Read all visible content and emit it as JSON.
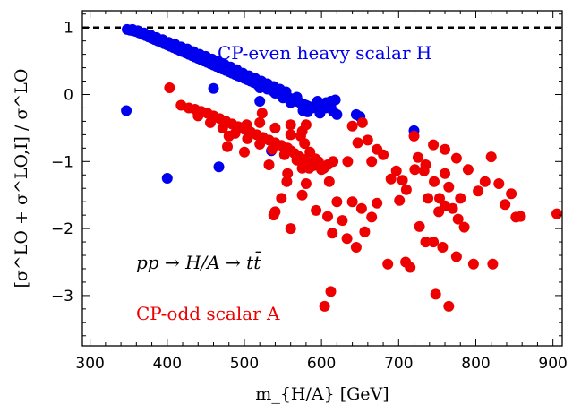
{
  "chart_data": {
    "type": "scatter",
    "xlabel": "m_{H/A} [GeV]",
    "ylabel": "[σ^LO + σ^LO,I] / σ^LO",
    "xlim": [
      290,
      912
    ],
    "ylim": [
      -3.75,
      1.25
    ],
    "xticks": [
      300,
      400,
      500,
      600,
      700,
      800,
      900
    ],
    "yticks": [
      -3,
      -2,
      -1,
      0,
      1
    ],
    "reference_line": {
      "y": 1,
      "style": "dashed",
      "color": "#000000"
    },
    "annotations": {
      "blue_label": "CP-even heavy scalar H",
      "red_label": "CP-odd scalar A",
      "process": "pp → H/A → tt̄"
    },
    "series": [
      {
        "name": "CP-even heavy scalar H",
        "color": "#0000ee",
        "points": [
          [
            348,
            0.97
          ],
          [
            352,
            0.96
          ],
          [
            356,
            0.95
          ],
          [
            360,
            0.94
          ],
          [
            364,
            0.92
          ],
          [
            368,
            0.9
          ],
          [
            372,
            0.88
          ],
          [
            376,
            0.86
          ],
          [
            380,
            0.84
          ],
          [
            384,
            0.82
          ],
          [
            388,
            0.8
          ],
          [
            392,
            0.78
          ],
          [
            396,
            0.76
          ],
          [
            400,
            0.74
          ],
          [
            404,
            0.72
          ],
          [
            408,
            0.7
          ],
          [
            412,
            0.68
          ],
          [
            416,
            0.66
          ],
          [
            420,
            0.64
          ],
          [
            424,
            0.62
          ],
          [
            428,
            0.6
          ],
          [
            432,
            0.58
          ],
          [
            436,
            0.56
          ],
          [
            440,
            0.54
          ],
          [
            444,
            0.52
          ],
          [
            448,
            0.5
          ],
          [
            452,
            0.48
          ],
          [
            456,
            0.46
          ],
          [
            460,
            0.44
          ],
          [
            464,
            0.42
          ],
          [
            468,
            0.4
          ],
          [
            472,
            0.38
          ],
          [
            476,
            0.36
          ],
          [
            480,
            0.34
          ],
          [
            484,
            0.32
          ],
          [
            488,
            0.3
          ],
          [
            492,
            0.28
          ],
          [
            496,
            0.26
          ],
          [
            500,
            0.24
          ],
          [
            504,
            0.22
          ],
          [
            508,
            0.2
          ],
          [
            512,
            0.18
          ],
          [
            516,
            0.16
          ],
          [
            520,
            0.14
          ],
          [
            524,
            0.12
          ],
          [
            528,
            0.1
          ],
          [
            532,
            0.08
          ],
          [
            536,
            0.06
          ],
          [
            540,
            0.04
          ],
          [
            544,
            0.02
          ],
          [
            548,
            0.0
          ],
          [
            552,
            -0.02
          ],
          [
            556,
            -0.04
          ],
          [
            560,
            -0.06
          ],
          [
            564,
            -0.08
          ],
          [
            568,
            -0.1
          ],
          [
            572,
            -0.12
          ],
          [
            576,
            -0.14
          ],
          [
            580,
            -0.16
          ],
          [
            584,
            -0.18
          ],
          [
            588,
            -0.2
          ],
          [
            355,
            0.97
          ],
          [
            362,
            0.95
          ],
          [
            370,
            0.92
          ],
          [
            378,
            0.89
          ],
          [
            386,
            0.85
          ],
          [
            394,
            0.82
          ],
          [
            402,
            0.78
          ],
          [
            410,
            0.75
          ],
          [
            418,
            0.71
          ],
          [
            426,
            0.68
          ],
          [
            434,
            0.64
          ],
          [
            442,
            0.6
          ],
          [
            450,
            0.57
          ],
          [
            458,
            0.53
          ],
          [
            466,
            0.49
          ],
          [
            474,
            0.45
          ],
          [
            482,
            0.41
          ],
          [
            490,
            0.37
          ],
          [
            498,
            0.32
          ],
          [
            506,
            0.28
          ],
          [
            514,
            0.24
          ],
          [
            522,
            0.2
          ],
          [
            530,
            0.16
          ],
          [
            538,
            0.12
          ],
          [
            546,
            0.08
          ],
          [
            554,
            0.04
          ],
          [
            595,
            -0.1
          ],
          [
            600,
            -0.15
          ],
          [
            605,
            -0.2
          ],
          [
            610,
            -0.12
          ],
          [
            615,
            -0.25
          ],
          [
            620,
            -0.3
          ],
          [
            598,
            -0.28
          ],
          [
            645,
            -0.3
          ],
          [
            650,
            -0.33
          ],
          [
            618,
            -0.08
          ],
          [
            612,
            -0.18
          ],
          [
            612,
            -0.1
          ],
          [
            606,
            -0.12
          ],
          [
            582,
            -0.26
          ],
          [
            576,
            -0.24
          ],
          [
            550,
            -0.05
          ],
          [
            560,
            -0.12
          ],
          [
            520,
            0.1
          ],
          [
            530,
            0.08
          ],
          [
            540,
            0.02
          ],
          [
            568,
            -0.04
          ],
          [
            347,
            -0.24
          ],
          [
            400,
            -1.25
          ],
          [
            467,
            -1.08
          ],
          [
            460,
            0.09
          ],
          [
            520,
            -0.1
          ],
          [
            535,
            -0.84
          ],
          [
            720,
            -0.54
          ]
        ]
      },
      {
        "name": "CP-odd scalar A",
        "color": "#ee0000",
        "points": [
          [
            403,
            0.1
          ],
          [
            418,
            -0.16
          ],
          [
            428,
            -0.2
          ],
          [
            436,
            -0.22
          ],
          [
            444,
            -0.25
          ],
          [
            452,
            -0.28
          ],
          [
            460,
            -0.32
          ],
          [
            468,
            -0.36
          ],
          [
            476,
            -0.4
          ],
          [
            484,
            -0.44
          ],
          [
            492,
            -0.48
          ],
          [
            500,
            -0.52
          ],
          [
            508,
            -0.56
          ],
          [
            516,
            -0.6
          ],
          [
            524,
            -0.64
          ],
          [
            532,
            -0.68
          ],
          [
            540,
            -0.72
          ],
          [
            548,
            -0.76
          ],
          [
            556,
            -0.8
          ],
          [
            560,
            -0.84
          ],
          [
            565,
            -0.88
          ],
          [
            570,
            -0.92
          ],
          [
            575,
            -0.96
          ],
          [
            580,
            -1.0
          ],
          [
            585,
            -1.04
          ],
          [
            590,
            -1.06
          ],
          [
            440,
            -0.32
          ],
          [
            456,
            -0.42
          ],
          [
            472,
            -0.5
          ],
          [
            488,
            -0.58
          ],
          [
            504,
            -0.66
          ],
          [
            520,
            -0.74
          ],
          [
            536,
            -0.82
          ],
          [
            552,
            -0.9
          ],
          [
            568,
            -0.98
          ],
          [
            584,
            -1.1
          ],
          [
            600,
            -1.12
          ],
          [
            520,
            -0.42
          ],
          [
            540,
            -0.5
          ],
          [
            560,
            -0.6
          ],
          [
            573,
            -0.62
          ],
          [
            578,
            -0.73
          ],
          [
            585,
            -0.86
          ],
          [
            592,
            -0.96
          ],
          [
            596,
            -1.0
          ],
          [
            603,
            -1.1
          ],
          [
            608,
            -1.05
          ],
          [
            615,
            -1.0
          ],
          [
            556,
            -1.18
          ],
          [
            532,
            -1.05
          ],
          [
            500,
            -0.86
          ],
          [
            480,
            -0.62
          ],
          [
            478,
            -0.78
          ],
          [
            503,
            -0.45
          ],
          [
            523,
            -0.28
          ],
          [
            560,
            -0.45
          ],
          [
            575,
            -0.55
          ],
          [
            580,
            -0.45
          ],
          [
            660,
            -0.68
          ],
          [
            672,
            -0.82
          ],
          [
            647,
            -0.72
          ],
          [
            634,
            -1.0
          ],
          [
            690,
            -1.26
          ],
          [
            705,
            -1.28
          ],
          [
            710,
            -1.42
          ],
          [
            721,
            -1.12
          ],
          [
            725,
            -0.94
          ],
          [
            735,
            -1.05
          ],
          [
            746,
            -1.3
          ],
          [
            753,
            -1.55
          ],
          [
            760,
            -1.66
          ],
          [
            770,
            -1.7
          ],
          [
            777,
            -1.86
          ],
          [
            785,
            -1.98
          ],
          [
            760,
            -1.18
          ],
          [
            790,
            -1.12
          ],
          [
            812,
            -1.3
          ],
          [
            830,
            -1.33
          ],
          [
            820,
            -0.93
          ],
          [
            803,
            -1.44
          ],
          [
            838,
            -1.64
          ],
          [
            852,
            -1.83
          ],
          [
            858,
            -1.82
          ],
          [
            905,
            -1.78
          ],
          [
            846,
            -1.48
          ],
          [
            765,
            -1.38
          ],
          [
            780,
            -1.55
          ],
          [
            538,
            -1.8
          ],
          [
            540,
            -1.75
          ],
          [
            548,
            -1.55
          ],
          [
            555,
            -1.3
          ],
          [
            575,
            -1.5
          ],
          [
            580,
            -1.33
          ],
          [
            593,
            -1.73
          ],
          [
            608,
            -1.82
          ],
          [
            614,
            -2.07
          ],
          [
            620,
            -1.6
          ],
          [
            627,
            -1.88
          ],
          [
            633,
            -2.15
          ],
          [
            640,
            -1.6
          ],
          [
            645,
            -2.28
          ],
          [
            652,
            -1.7
          ],
          [
            656,
            -2.05
          ],
          [
            665,
            -1.83
          ],
          [
            672,
            -1.62
          ],
          [
            686,
            -2.53
          ],
          [
            701,
            -1.58
          ],
          [
            709,
            -2.5
          ],
          [
            715,
            -2.58
          ],
          [
            727,
            -1.97
          ],
          [
            735,
            -2.2
          ],
          [
            745,
            -2.2
          ],
          [
            757,
            -2.28
          ],
          [
            775,
            -2.42
          ],
          [
            797,
            -2.53
          ],
          [
            822,
            -2.53
          ],
          [
            748,
            -2.98
          ],
          [
            765,
            -3.16
          ],
          [
            612,
            -2.94
          ],
          [
            604,
            -3.16
          ],
          [
            560,
            -2.0
          ],
          [
            575,
            -1.1
          ],
          [
            610,
            -1.3
          ],
          [
            640,
            -0.47
          ],
          [
            653,
            -0.42
          ],
          [
            665,
            -1.0
          ],
          [
            680,
            -0.9
          ],
          [
            697,
            -1.14
          ],
          [
            720,
            -0.62
          ],
          [
            733,
            -1.14
          ],
          [
            745,
            -0.75
          ],
          [
            760,
            -0.82
          ],
          [
            775,
            -0.95
          ],
          [
            738,
            -1.55
          ],
          [
            752,
            -1.75
          ]
        ]
      }
    ]
  }
}
